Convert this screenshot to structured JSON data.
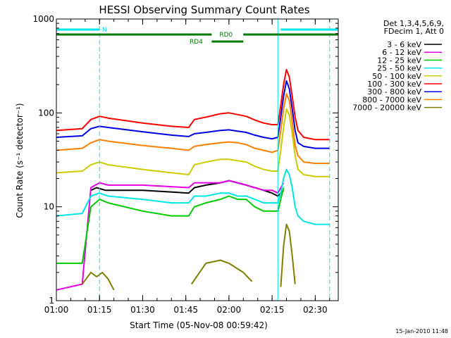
{
  "chart_data": {
    "type": "line",
    "title": "HESSI Observing Summary Count Rates",
    "xlabel": "Start Time (05-Nov-08 00:59:42)",
    "ylabel": "Count Rate (s⁻¹ detector⁻¹)",
    "y_scale": "log",
    "xlim": [
      "01:00",
      "02:38"
    ],
    "ylim": [
      1,
      1000
    ],
    "x_tick_labels": [
      "01:00",
      "01:15",
      "01:30",
      "01:45",
      "02:00",
      "02:15",
      "02:30"
    ],
    "y_tick_labels": [
      "1",
      "10",
      "100",
      "1000"
    ],
    "legend_title": [
      "Det 1,3,4,5,6,9,",
      "FDecim 1, Att 0"
    ],
    "legend_position": "right, outside plot",
    "series": [
      {
        "name": "3 - 6 keV",
        "color": "#000000",
        "x": [
          "01:00",
          "01:10",
          "01:12",
          "01:14",
          "01:17",
          "01:30",
          "01:46",
          "01:48",
          "01:52",
          "01:57",
          "02:00",
          "02:03",
          "02:06",
          "02:09",
          "02:12",
          "02:15",
          "02:17",
          "02:19",
          "02:20",
          "02:22",
          "02:24",
          "02:26"
        ],
        "y": [
          null,
          null,
          15,
          16,
          15,
          15,
          14,
          16,
          17,
          18,
          19,
          18,
          17,
          16,
          15,
          14,
          13,
          15,
          null,
          null,
          null,
          null
        ]
      },
      {
        "name": "6 - 12 keV",
        "color": "#e600e6",
        "x": [
          "01:00",
          "01:09",
          "01:12",
          "01:15",
          "01:18",
          "01:30",
          "01:46",
          "01:48",
          "01:52",
          "01:57",
          "02:00",
          "02:03",
          "02:06",
          "02:09",
          "02:12",
          "02:15",
          "02:17",
          "02:19",
          "02:20",
          "02:22",
          "02:24",
          "02:26"
        ],
        "y": [
          1.3,
          1.5,
          16,
          18,
          17,
          17,
          16,
          18,
          18,
          18,
          19,
          18,
          17,
          16,
          15,
          15,
          14,
          18,
          null,
          null,
          null,
          null
        ]
      },
      {
        "name": "12 - 25 keV",
        "color": "#00cc00",
        "x": [
          "01:00",
          "01:09",
          "01:12",
          "01:15",
          "01:18",
          "01:30",
          "01:40",
          "01:46",
          "01:48",
          "01:52",
          "01:57",
          "02:00",
          "02:03",
          "02:06",
          "02:09",
          "02:12",
          "02:15",
          "02:17",
          "02:19",
          "02:20",
          "02:22",
          "02:24",
          "02:26"
        ],
        "y": [
          2.5,
          2.5,
          10,
          12,
          11,
          9,
          8,
          8,
          10,
          11,
          12,
          13,
          12,
          12,
          10,
          9,
          9,
          9,
          16,
          null,
          null,
          null,
          null
        ]
      },
      {
        "name": "25 - 50 keV",
        "color": "#00e6e6",
        "x": [
          "01:00",
          "01:09",
          "01:12",
          "01:15",
          "01:18",
          "01:30",
          "01:40",
          "01:46",
          "01:48",
          "01:52",
          "01:57",
          "02:00",
          "02:03",
          "02:06",
          "02:09",
          "02:12",
          "02:15",
          "02:17",
          "02:18",
          "02:19",
          "02:20",
          "02:21",
          "02:22",
          "02:23",
          "02:24",
          "02:26",
          "02:30",
          "02:35"
        ],
        "y": [
          8,
          8.5,
          13,
          14,
          13,
          12,
          11,
          11,
          13,
          13,
          14,
          14,
          13,
          13,
          12,
          11,
          11,
          11,
          14,
          20,
          25,
          22,
          16,
          10,
          8,
          7,
          6.5,
          6.5
        ]
      },
      {
        "name": "50 - 100 keV",
        "color": "#cccc00",
        "x": [
          "01:00",
          "01:09",
          "01:12",
          "01:15",
          "01:18",
          "01:30",
          "01:40",
          "01:46",
          "01:48",
          "01:52",
          "01:57",
          "02:00",
          "02:03",
          "02:06",
          "02:09",
          "02:12",
          "02:15",
          "02:17",
          "02:18",
          "02:19",
          "02:20",
          "02:21",
          "02:22",
          "02:23",
          "02:24",
          "02:26",
          "02:30",
          "02:35"
        ],
        "y": [
          23,
          24,
          28,
          30,
          28,
          25,
          23,
          22,
          28,
          30,
          32,
          32,
          31,
          30,
          27,
          25,
          24,
          24,
          40,
          70,
          110,
          95,
          60,
          35,
          25,
          22,
          21,
          21
        ]
      },
      {
        "name": "100 - 300 keV",
        "color": "#ff0000",
        "x": [
          "01:00",
          "01:09",
          "01:12",
          "01:15",
          "01:18",
          "01:30",
          "01:40",
          "01:46",
          "01:48",
          "01:52",
          "01:57",
          "02:00",
          "02:03",
          "02:06",
          "02:09",
          "02:12",
          "02:15",
          "02:17",
          "02:18",
          "02:19",
          "02:20",
          "02:21",
          "02:22",
          "02:23",
          "02:24",
          "02:26",
          "02:30",
          "02:35"
        ],
        "y": [
          65,
          68,
          85,
          92,
          88,
          78,
          72,
          70,
          85,
          90,
          98,
          100,
          96,
          92,
          84,
          78,
          75,
          75,
          120,
          200,
          290,
          240,
          150,
          90,
          65,
          55,
          52,
          52
        ]
      },
      {
        "name": "300 - 800 keV",
        "color": "#0000e6",
        "x": [
          "01:00",
          "01:09",
          "01:12",
          "01:15",
          "01:18",
          "01:30",
          "01:40",
          "01:46",
          "01:48",
          "01:52",
          "01:57",
          "02:00",
          "02:03",
          "02:06",
          "02:09",
          "02:12",
          "02:15",
          "02:17",
          "02:18",
          "02:19",
          "02:20",
          "02:21",
          "02:22",
          "02:23",
          "02:24",
          "02:26",
          "02:30",
          "02:35"
        ],
        "y": [
          55,
          57,
          68,
          72,
          70,
          63,
          58,
          56,
          60,
          62,
          65,
          66,
          64,
          62,
          58,
          55,
          53,
          55,
          90,
          150,
          220,
          180,
          110,
          65,
          48,
          44,
          42,
          42
        ]
      },
      {
        "name": "800 - 7000 keV",
        "color": "#ff8000",
        "x": [
          "01:00",
          "01:09",
          "01:12",
          "01:15",
          "01:18",
          "01:30",
          "01:40",
          "01:46",
          "01:48",
          "01:52",
          "01:57",
          "02:00",
          "02:03",
          "02:06",
          "02:09",
          "02:12",
          "02:15",
          "02:17",
          "02:18",
          "02:19",
          "02:20",
          "02:21",
          "02:22",
          "02:23",
          "02:24",
          "02:26",
          "02:30",
          "02:35"
        ],
        "y": [
          40,
          42,
          48,
          52,
          50,
          45,
          42,
          40,
          44,
          46,
          48,
          49,
          48,
          46,
          42,
          40,
          38,
          40,
          65,
          110,
          160,
          135,
          80,
          45,
          35,
          30,
          29,
          29
        ]
      },
      {
        "name": "7000 - 20000 keV",
        "color": "#808000",
        "x": [
          "01:00",
          "01:02",
          "01:05",
          "01:08",
          "01:09",
          "01:12",
          "01:14",
          "01:16",
          "01:18",
          "01:20",
          "01:25",
          "01:30",
          "01:35",
          "01:40",
          "01:45",
          "01:47",
          "01:52",
          "01:57",
          "02:00",
          "02:05",
          "02:08",
          "02:10",
          "02:12",
          "02:14",
          "02:16",
          "02:18",
          "02:19",
          "02:20",
          "02:21",
          "02:22",
          "02:23",
          "02:24",
          "02:25"
        ],
        "y": [
          null,
          null,
          null,
          null,
          1.5,
          2,
          1.8,
          2,
          1.7,
          1.3,
          null,
          null,
          null,
          null,
          null,
          1.5,
          2.5,
          2.7,
          2.5,
          2.0,
          1.6,
          null,
          null,
          null,
          null,
          1.4,
          3.8,
          6.5,
          5.5,
          3.0,
          1.5,
          null,
          null
        ]
      }
    ],
    "attenuator_segments": [
      {
        "label": "N",
        "color": "#00e6e6",
        "x": [
          [
            "01:00",
            "01:15"
          ],
          [
            "02:18",
            "02:38"
          ]
        ]
      },
      {
        "label": "RD0",
        "color": "#007a00",
        "x": [
          [
            "01:00",
            "01:54"
          ],
          [
            "02:05",
            "02:38"
          ]
        ]
      },
      {
        "label": "RD4",
        "color": "#007a00",
        "x": [
          [
            "01:54",
            "02:05"
          ]
        ]
      }
    ],
    "vertical_markers": [
      {
        "time": "01:15",
        "color": "#00e6e6",
        "style": "dashed"
      },
      {
        "time": "02:17",
        "color": "#00e6e6",
        "style": "solid"
      },
      {
        "time": "02:35",
        "color": "#00e6e6",
        "style": "dashed"
      }
    ]
  },
  "timestamp": "15-Jan-2010 11:48"
}
